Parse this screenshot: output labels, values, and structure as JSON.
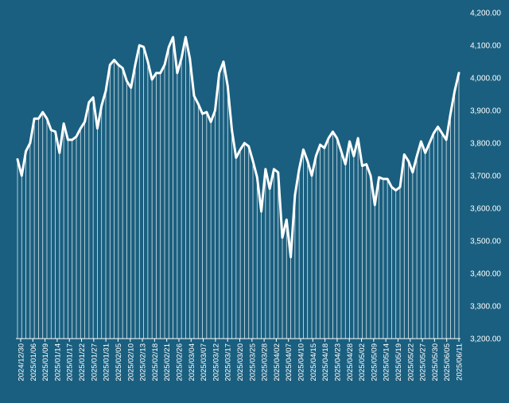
{
  "colors": {
    "background": "#1a5f7f",
    "line": "#ffffff",
    "drop_lines": "#ffffff"
  },
  "chart_data": {
    "type": "line",
    "title": "",
    "xlabel": "",
    "ylabel": "",
    "ylim": [
      3200,
      4200
    ],
    "yticks": [
      3200,
      3300,
      3400,
      3500,
      3600,
      3700,
      3800,
      3900,
      4000,
      4100,
      4200
    ],
    "ytick_labels": [
      "3,200.00",
      "3,300.00",
      "3,400.00",
      "3,500.00",
      "3,600.00",
      "3,700.00",
      "3,800.00",
      "3,900.00",
      "4,000.00",
      "4,100.00",
      "4,200.00"
    ],
    "y_axis_side": "right",
    "grid": false,
    "legend": "none",
    "xtick_labels": [
      "2024/12/30",
      "2025/01/06",
      "2025/01/09",
      "2025/01/14",
      "2025/01/17",
      "2025/01/22",
      "2025/01/27",
      "2025/01/31",
      "2025/02/05",
      "2025/02/10",
      "2025/02/13",
      "2025/02/18",
      "2025/02/21",
      "2025/02/26",
      "2025/03/04",
      "2025/03/07",
      "2025/03/12",
      "2025/03/17",
      "2025/03/20",
      "2025/03/25",
      "2025/03/28",
      "2025/04/02",
      "2025/04/07",
      "2025/04/10",
      "2025/04/15",
      "2025/04/18",
      "2025/04/23",
      "2025/04/28",
      "2025/05/02",
      "2025/05/09",
      "2025/05/14",
      "2025/05/19",
      "2025/05/22",
      "2025/05/27",
      "2025/05/30",
      "2025/06/05",
      "2025/06/11"
    ],
    "values": [
      3750,
      3700,
      3775,
      3800,
      3875,
      3875,
      3895,
      3875,
      3840,
      3835,
      3770,
      3860,
      3810,
      3810,
      3820,
      3845,
      3865,
      3925,
      3940,
      3845,
      3915,
      3960,
      4040,
      4055,
      4040,
      4030,
      3990,
      3970,
      4040,
      4100,
      4095,
      4050,
      3995,
      4015,
      4015,
      4040,
      4095,
      4125,
      4015,
      4060,
      4125,
      4060,
      3945,
      3920,
      3890,
      3895,
      3865,
      3900,
      4015,
      4050,
      3975,
      3840,
      3755,
      3780,
      3800,
      3790,
      3745,
      3695,
      3590,
      3720,
      3660,
      3720,
      3710,
      3510,
      3565,
      3450,
      3640,
      3720,
      3780,
      3745,
      3700,
      3760,
      3795,
      3785,
      3815,
      3835,
      3815,
      3775,
      3735,
      3805,
      3760,
      3815,
      3730,
      3735,
      3700,
      3610,
      3695,
      3690,
      3690,
      3665,
      3655,
      3665,
      3765,
      3745,
      3710,
      3760,
      3805,
      3770,
      3800,
      3830,
      3850,
      3830,
      3810,
      3890,
      3960,
      4015
    ]
  }
}
